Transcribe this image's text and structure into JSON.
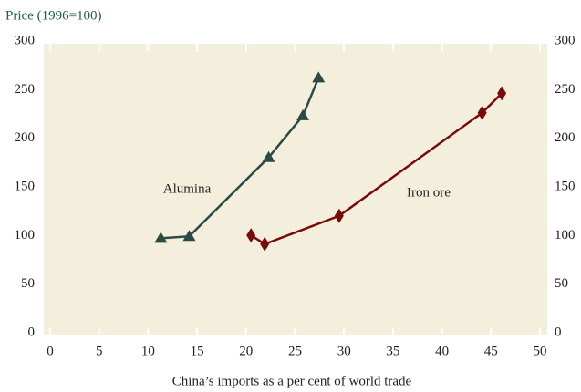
{
  "chart_data": {
    "type": "line",
    "title": "Price (1996=100)",
    "x_label": "China’s imports as a per cent of world trade",
    "xlim": [
      0,
      50
    ],
    "xticks": [
      0,
      5,
      10,
      15,
      20,
      25,
      30,
      35,
      40,
      45,
      50
    ],
    "ylim": [
      0,
      300
    ],
    "yticks": [
      0,
      50,
      100,
      150,
      200,
      250,
      300
    ],
    "y2lim": [
      0,
      300
    ],
    "y2ticks": [
      0,
      50,
      100,
      150,
      200,
      250,
      300
    ],
    "series": [
      {
        "name": "Alumina",
        "color": "#2b4a44",
        "marker": "triangle",
        "x": [
          11.3,
          14.2,
          22.3,
          25.8,
          27.4
        ],
        "values": [
          100,
          102,
          183,
          226,
          265
        ]
      },
      {
        "name": "Iron ore",
        "color": "#7a0a0a",
        "marker": "diamond",
        "x": [
          20.5,
          21.9,
          29.5,
          44.1,
          46.1
        ],
        "values": [
          103,
          94,
          123,
          229,
          249
        ]
      }
    ]
  }
}
